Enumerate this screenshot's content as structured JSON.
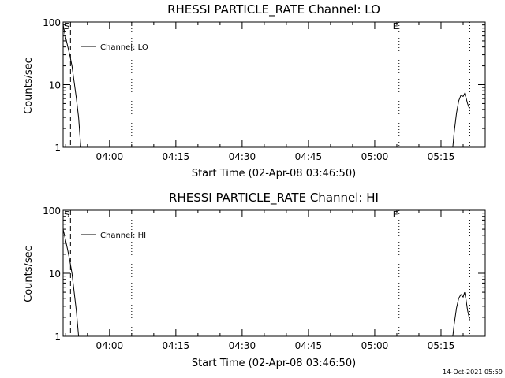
{
  "footer": {
    "timestamp": "14-Oct-2021 05:59"
  },
  "chart_data": [
    {
      "type": "line",
      "title": "RHESSI PARTICLE_RATE Channel: LO",
      "xlabel": "Start Time (02-Apr-08 03:46:50)",
      "ylabel": "Counts/sec",
      "y_scale": "log",
      "ylim": [
        1,
        100
      ],
      "xlim": [
        "03:49:30",
        "05:25:00"
      ],
      "x_ticks": [
        "04:00",
        "04:15",
        "04:30",
        "04:45",
        "05:00",
        "05:15"
      ],
      "y_ticks": [
        "1",
        "10",
        "100"
      ],
      "legend": {
        "position": "top-left",
        "entries": [
          "Channel: LO"
        ]
      },
      "markers": [
        {
          "label": "S",
          "time": "03:51:10",
          "style": "dashed"
        },
        {
          "label": "",
          "time": "04:05:00",
          "style": "dotted"
        },
        {
          "label": "E",
          "time": "05:05:30",
          "style": "dotted"
        },
        {
          "label": "",
          "time": "05:21:30",
          "style": "dotted"
        }
      ],
      "series": [
        {
          "name": "Channel: LO",
          "points": [
            [
              "03:49:30",
              90
            ],
            [
              "03:50:00",
              60
            ],
            [
              "03:50:30",
              42
            ],
            [
              "03:51:00",
              30
            ],
            [
              "03:51:30",
              20
            ],
            [
              "03:52:00",
              11
            ],
            [
              "03:52:30",
              6
            ],
            [
              "03:53:00",
              3
            ],
            [
              "03:53:30",
              1
            ]
          ]
        },
        {
          "name": "Channel: LO",
          "points": [
            [
              "05:17:40",
              1
            ],
            [
              "05:18:00",
              1.8
            ],
            [
              "05:18:30",
              3.5
            ],
            [
              "05:19:00",
              5.5
            ],
            [
              "05:19:30",
              6.8
            ],
            [
              "05:20:00",
              6.5
            ],
            [
              "05:20:20",
              7.2
            ],
            [
              "05:20:40",
              6.2
            ],
            [
              "05:21:00",
              5.0
            ],
            [
              "05:21:30",
              4.0
            ]
          ]
        }
      ]
    },
    {
      "type": "line",
      "title": "RHESSI PARTICLE_RATE Channel: HI",
      "xlabel": "Start Time (02-Apr-08 03:46:50)",
      "ylabel": "Counts/sec",
      "y_scale": "log",
      "ylim": [
        1,
        100
      ],
      "xlim": [
        "03:49:30",
        "05:25:00"
      ],
      "x_ticks": [
        "04:00",
        "04:15",
        "04:30",
        "04:45",
        "05:00",
        "05:15"
      ],
      "y_ticks": [
        "1",
        "10",
        "100"
      ],
      "legend": {
        "position": "top-left",
        "entries": [
          "Channel: HI"
        ]
      },
      "markers": [
        {
          "label": "S",
          "time": "03:51:10",
          "style": "dashed"
        },
        {
          "label": "",
          "time": "04:05:00",
          "style": "dotted"
        },
        {
          "label": "E",
          "time": "05:05:30",
          "style": "dotted"
        },
        {
          "label": "",
          "time": "05:21:30",
          "style": "dotted"
        }
      ],
      "series": [
        {
          "name": "Channel: HI",
          "points": [
            [
              "03:49:30",
              50
            ],
            [
              "03:50:00",
              35
            ],
            [
              "03:50:30",
              24
            ],
            [
              "03:51:00",
              16
            ],
            [
              "03:51:30",
              10
            ],
            [
              "03:52:00",
              5
            ],
            [
              "03:52:30",
              2.5
            ],
            [
              "03:53:00",
              1
            ]
          ]
        },
        {
          "name": "Channel: HI",
          "points": [
            [
              "05:17:40",
              1
            ],
            [
              "05:18:00",
              1.6
            ],
            [
              "05:18:30",
              2.8
            ],
            [
              "05:19:00",
              4.0
            ],
            [
              "05:19:30",
              4.6
            ],
            [
              "05:20:00",
              4.2
            ],
            [
              "05:20:20",
              5.0
            ],
            [
              "05:20:40",
              3.8
            ],
            [
              "05:21:00",
              2.6
            ],
            [
              "05:21:30",
              1.8
            ]
          ]
        }
      ]
    }
  ]
}
